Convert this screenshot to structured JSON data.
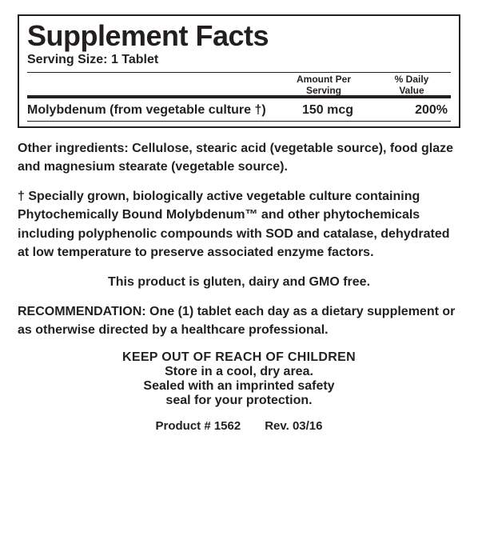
{
  "colors": {
    "text": "#231f20",
    "bg": "#ffffff"
  },
  "facts": {
    "title": "Supplement Facts",
    "serving_label": "Serving Size:",
    "serving_value": "1 Tablet",
    "headers": {
      "amount_line1": "Amount Per",
      "amount_line2": "Serving",
      "dv_line1": "% Daily",
      "dv_line2": "Value"
    },
    "row": {
      "name": "Molybdenum (from vegetable culture †)",
      "amount": "150 mcg",
      "dv": "200%"
    }
  },
  "other_ingredients": "Other ingredients: Cellulose, stearic acid (vegetable source), food glaze and magnesium stearate (vegetable source).",
  "culture_note": "† Specially grown, biologically active vegetable culture containing Phytochemically Bound Molybdenum™ and other phytochemicals including polyphenolic compounds with SOD and catalase, dehydrated at low temperature to preserve associated enzyme factors.",
  "free_from": "This product is gluten, dairy and GMO free.",
  "recommendation": "RECOMMENDATION: One (1) tablet each day as a dietary supplement or as otherwise directed by a healthcare professional.",
  "warning_caps": "KEEP OUT OF REACH OF CHILDREN",
  "storage1": "Store in a cool, dry area.",
  "storage2": "Sealed with an imprinted safety",
  "storage3": "seal for your protection.",
  "footer": "Product # 1562  Rev. 03/16"
}
